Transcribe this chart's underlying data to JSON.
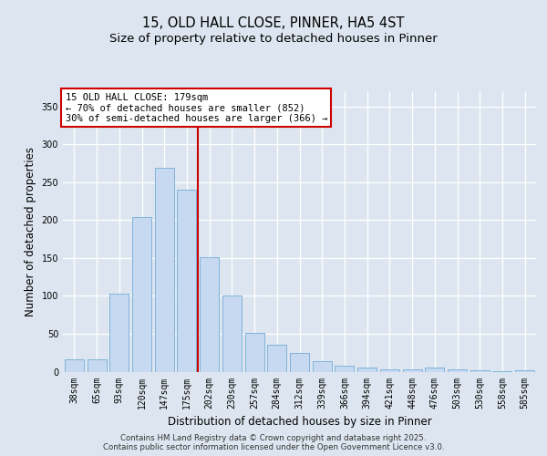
{
  "title_line1": "15, OLD HALL CLOSE, PINNER, HA5 4ST",
  "title_line2": "Size of property relative to detached houses in Pinner",
  "xlabel": "Distribution of detached houses by size in Pinner",
  "ylabel": "Number of detached properties",
  "categories": [
    "38sqm",
    "65sqm",
    "93sqm",
    "120sqm",
    "147sqm",
    "175sqm",
    "202sqm",
    "230sqm",
    "257sqm",
    "284sqm",
    "312sqm",
    "339sqm",
    "366sqm",
    "394sqm",
    "421sqm",
    "448sqm",
    "476sqm",
    "503sqm",
    "530sqm",
    "558sqm",
    "585sqm"
  ],
  "values": [
    16,
    16,
    103,
    204,
    269,
    240,
    151,
    101,
    51,
    36,
    25,
    14,
    8,
    6,
    3,
    3,
    5,
    3,
    2,
    1,
    2
  ],
  "bar_color": "#c6d9f0",
  "bar_edge_color": "#7fb3d9",
  "vline_x": 5.5,
  "vline_color": "#cc0000",
  "annotation_text": "15 OLD HALL CLOSE: 179sqm\n← 70% of detached houses are smaller (852)\n30% of semi-detached houses are larger (366) →",
  "annotation_box_color": "#ffffff",
  "annotation_box_edge": "#cc0000",
  "background_color": "#dde6f0",
  "plot_bg_color": "#dde6f0",
  "ylim": [
    0,
    370
  ],
  "yticks": [
    0,
    50,
    100,
    150,
    200,
    250,
    300,
    350
  ],
  "footer_text": "Contains HM Land Registry data © Crown copyright and database right 2025.\nContains public sector information licensed under the Open Government Licence v3.0.",
  "title_fontsize": 10.5,
  "subtitle_fontsize": 9.5,
  "tick_fontsize": 7,
  "xlabel_fontsize": 8.5,
  "ylabel_fontsize": 8.5
}
